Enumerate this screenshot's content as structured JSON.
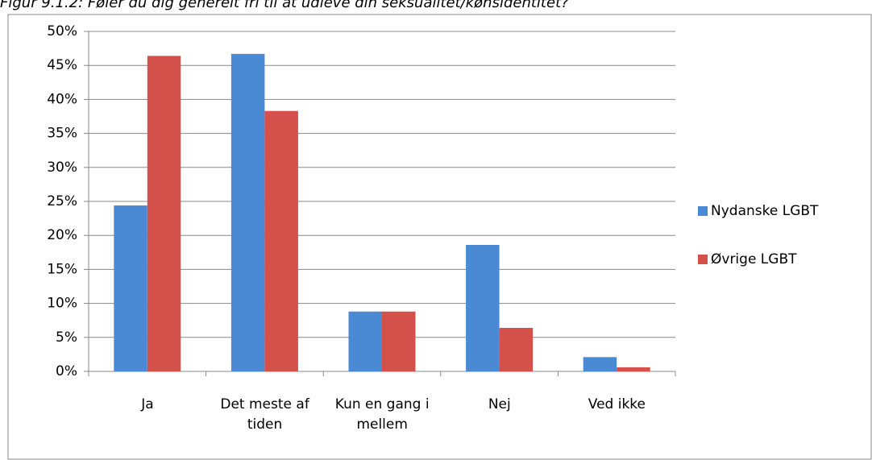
{
  "chart_data": {
    "type": "bar",
    "title": "Figur 9.1.2: Føler du dig generelt fri til at udleve din seksualitet/kønsidentitet?",
    "categories": [
      "Ja",
      "Det meste af tiden",
      "Kun en gang i mellem",
      "Nej",
      "Ved ikke"
    ],
    "series": [
      {
        "name": "Nydanske LGBT",
        "color": "#4a8ad4",
        "values": [
          24.4,
          46.7,
          8.8,
          18.6,
          2.1
        ]
      },
      {
        "name": "Øvrige LGBT",
        "color": "#d4504a",
        "values": [
          46.4,
          38.3,
          8.8,
          6.4,
          0.6
        ]
      }
    ],
    "ylim": [
      0,
      50
    ],
    "yticks": [
      {
        "value": 0,
        "label": "0%"
      },
      {
        "value": 5,
        "label": "5%"
      },
      {
        "value": 10,
        "label": "10%"
      },
      {
        "value": 15,
        "label": "15%"
      },
      {
        "value": 20,
        "label": "20%"
      },
      {
        "value": 25,
        "label": "25%"
      },
      {
        "value": 30,
        "label": "30%"
      },
      {
        "value": 35,
        "label": "35%"
      },
      {
        "value": 40,
        "label": "40%"
      },
      {
        "value": 45,
        "label": "45%"
      },
      {
        "value": 50,
        "label": "50%"
      }
    ],
    "grid": true,
    "legend": "right"
  }
}
